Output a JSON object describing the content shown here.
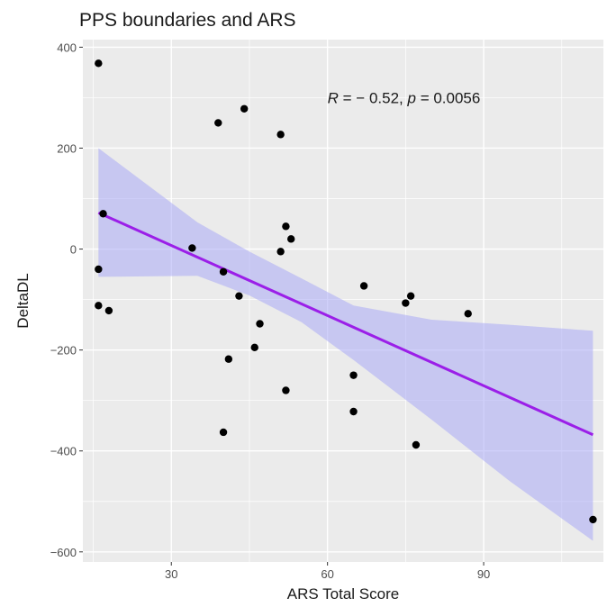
{
  "chart_data": {
    "type": "scatter",
    "title": "PPS boundaries and ARS",
    "xlabel": "ARS Total Score",
    "ylabel": "DeltaDL",
    "xlim": [
      13,
      113
    ],
    "ylim": [
      -620,
      415
    ],
    "x_ticks": [
      30,
      60,
      90
    ],
    "x_tick_labels": [
      "30",
      "60",
      "90"
    ],
    "y_ticks": [
      400,
      200,
      0,
      -200,
      -400,
      -600
    ],
    "y_tick_labels": [
      "400",
      "200",
      "0",
      "−200",
      "−400",
      "−600"
    ],
    "grid": true,
    "annotation": {
      "r_symbol": "R",
      "r_text": " = − 0.52, ",
      "p_symbol": "p",
      "p_text": " = 0.0056",
      "x": 60,
      "y": 300
    },
    "points": [
      {
        "x": 16.0,
        "y": 368
      },
      {
        "x": 16.9,
        "y": 70
      },
      {
        "x": 16.0,
        "y": -40
      },
      {
        "x": 16.0,
        "y": -112
      },
      {
        "x": 18.0,
        "y": -122
      },
      {
        "x": 34.0,
        "y": 2
      },
      {
        "x": 39.0,
        "y": 250
      },
      {
        "x": 40.0,
        "y": -45
      },
      {
        "x": 40.0,
        "y": -363
      },
      {
        "x": 41.0,
        "y": -218
      },
      {
        "x": 43.0,
        "y": -93
      },
      {
        "x": 44.0,
        "y": 278
      },
      {
        "x": 46.0,
        "y": -195
      },
      {
        "x": 47.0,
        "y": -148
      },
      {
        "x": 51.0,
        "y": 227
      },
      {
        "x": 51.0,
        "y": -5
      },
      {
        "x": 52.0,
        "y": 45
      },
      {
        "x": 53.0,
        "y": 20
      },
      {
        "x": 52.0,
        "y": -280
      },
      {
        "x": 65.0,
        "y": -250
      },
      {
        "x": 65.0,
        "y": -322
      },
      {
        "x": 67.0,
        "y": -73
      },
      {
        "x": 75.0,
        "y": -107
      },
      {
        "x": 76.0,
        "y": -93
      },
      {
        "x": 77.0,
        "y": -388
      },
      {
        "x": 87.0,
        "y": -128
      },
      {
        "x": 111.0,
        "y": -536
      }
    ],
    "fit": {
      "type": "linear",
      "color": "#9b1fe8",
      "points": [
        {
          "x": 16.0,
          "y": 72
        },
        {
          "x": 111.0,
          "y": -368
        }
      ],
      "ci_band_color": "#aaaaf5",
      "ci_band": [
        {
          "x": 16.0,
          "lower": -55,
          "upper": 200
        },
        {
          "x": 35.0,
          "lower": -53,
          "upper": 53
        },
        {
          "x": 45.0,
          "lower": -92,
          "upper": -5
        },
        {
          "x": 55.0,
          "lower": -145,
          "upper": -58
        },
        {
          "x": 65.0,
          "lower": -220,
          "upper": -112
        },
        {
          "x": 80.0,
          "lower": -338,
          "upper": -140
        },
        {
          "x": 95.0,
          "lower": -460,
          "upper": -150
        },
        {
          "x": 111.0,
          "lower": -578,
          "upper": -162
        }
      ]
    },
    "colors": {
      "panel": "#ebebeb",
      "grid": "#ffffff",
      "point": "#000000"
    }
  }
}
